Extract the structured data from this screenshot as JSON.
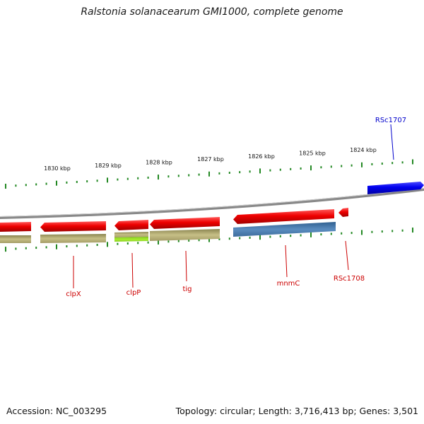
{
  "title": "Ralstonia solanacearum GMI1000, complete genome",
  "footer": {
    "accession": "Accession: NC_003295",
    "summary": "Topology: circular; Length: 3,716,413 bp; Genes: 3,501"
  },
  "ruler_labels": [
    "1830 kbp",
    "1829 kbp",
    "1828 kbp",
    "1827 kbp",
    "1826 kbp",
    "1825 kbp",
    "1824 kbp"
  ],
  "genes": [
    {
      "label": "RSc1707",
      "color": "#0000cc"
    },
    {
      "label": "clpX",
      "color": "#cc0000"
    },
    {
      "label": "clpP",
      "color": "#cc0000"
    },
    {
      "label": "tig",
      "color": "#cc0000"
    },
    {
      "label": "mnmC",
      "color": "#cc0000"
    },
    {
      "label": "RSc1708",
      "color": "#cc0000"
    }
  ],
  "colors": {
    "cds_minus": "#ee0000",
    "cds_plus": "#0000ee",
    "feature_khaki": "#bdb578",
    "feature_green": "#a8ee30",
    "feature_steel": "#4a7aaa",
    "ruler_tick": "#228822",
    "backbone": "#888888"
  }
}
